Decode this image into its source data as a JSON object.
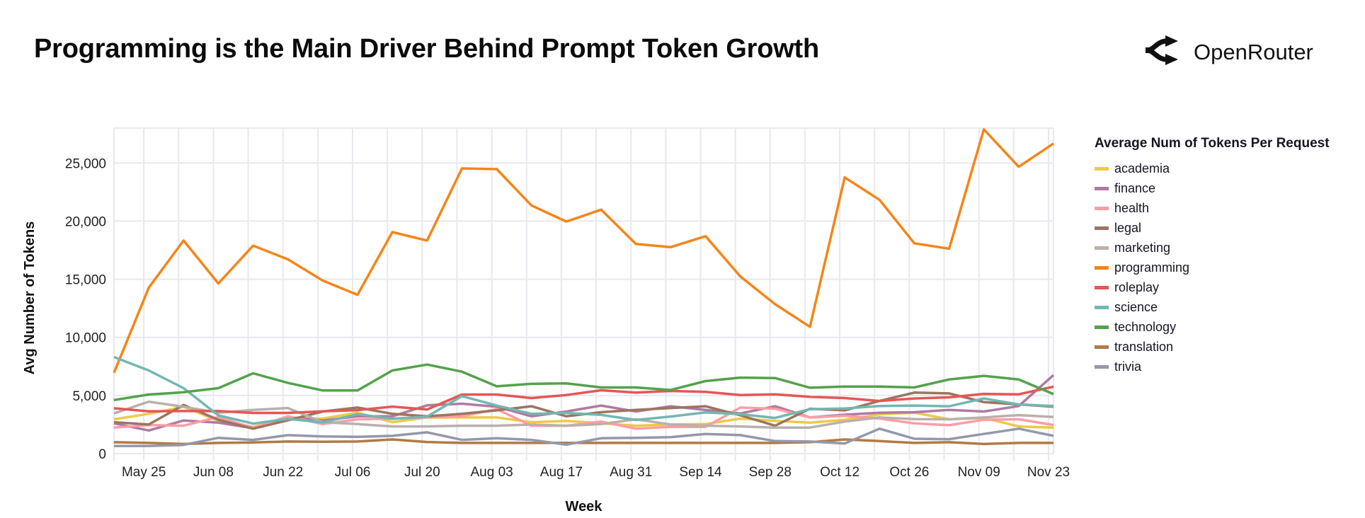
{
  "title": "Programming is the Main Driver Behind Prompt Token Growth",
  "brand": {
    "name": "OpenRouter",
    "icon": "openrouter-logo-icon"
  },
  "chart_data": {
    "type": "line",
    "xlabel": "Week",
    "ylabel": "Avg Number of Tokens",
    "legend_title": "Average Num of Tokens Per Request",
    "legend_position": "right",
    "grid": true,
    "x": [
      "2025-05-19",
      "2025-05-26",
      "2025-06-02",
      "2025-06-09",
      "2025-06-16",
      "2025-06-23",
      "2025-06-30",
      "2025-07-07",
      "2025-07-14",
      "2025-07-21",
      "2025-07-28",
      "2025-08-04",
      "2025-08-11",
      "2025-08-18",
      "2025-08-25",
      "2025-09-01",
      "2025-09-08",
      "2025-09-15",
      "2025-09-22",
      "2025-09-29",
      "2025-10-06",
      "2025-10-13",
      "2025-10-20",
      "2025-10-27",
      "2025-11-03",
      "2025-11-10",
      "2025-11-17",
      "2025-11-24"
    ],
    "xlim": [
      "2025-05-19",
      "2025-11-24"
    ],
    "x_ticks": [
      {
        "date": "2025-05-25",
        "label": "May 25"
      },
      {
        "date": "2025-06-08",
        "label": "Jun 08"
      },
      {
        "date": "2025-06-22",
        "label": "Jun 22"
      },
      {
        "date": "2025-07-06",
        "label": "Jul 06"
      },
      {
        "date": "2025-07-20",
        "label": "Jul 20"
      },
      {
        "date": "2025-08-03",
        "label": "Aug 03"
      },
      {
        "date": "2025-08-17",
        "label": "Aug 17"
      },
      {
        "date": "2025-08-31",
        "label": "Aug 31"
      },
      {
        "date": "2025-09-14",
        "label": "Sep 14"
      },
      {
        "date": "2025-09-28",
        "label": "Sep 28"
      },
      {
        "date": "2025-10-12",
        "label": "Oct 12"
      },
      {
        "date": "2025-10-26",
        "label": "Oct 26"
      },
      {
        "date": "2025-11-09",
        "label": "Nov 09"
      },
      {
        "date": "2025-11-23",
        "label": "Nov 23"
      }
    ],
    "ylim": [
      0,
      28000
    ],
    "y_ticks": [
      {
        "value": 0,
        "label": "0"
      },
      {
        "value": 5000,
        "label": "5,000"
      },
      {
        "value": 10000,
        "label": "10,000"
      },
      {
        "value": 15000,
        "label": "15,000"
      },
      {
        "value": 20000,
        "label": "20,000"
      },
      {
        "value": 25000,
        "label": "25,000"
      }
    ],
    "series": [
      {
        "name": "academia",
        "color": "#edc948",
        "values": [
          2950,
          3420,
          4030,
          2810,
          2300,
          3010,
          3010,
          3520,
          2700,
          3110,
          3110,
          3110,
          2700,
          2810,
          2600,
          2400,
          2500,
          2540,
          3010,
          2810,
          2660,
          2910,
          3380,
          3520,
          2950,
          3070,
          2340,
          2240
        ]
      },
      {
        "name": "finance",
        "color": "#b07aa1",
        "values": [
          2600,
          1990,
          2850,
          2660,
          2180,
          3150,
          2850,
          3210,
          3210,
          4150,
          4290,
          4030,
          3210,
          3620,
          4130,
          3620,
          4070,
          3760,
          3460,
          4070,
          3110,
          3350,
          3520,
          3560,
          3760,
          3620,
          4090,
          6750
        ]
      },
      {
        "name": "health",
        "color": "#ff9da7",
        "values": [
          2240,
          2460,
          2400,
          3150,
          2200,
          3210,
          2540,
          2950,
          3010,
          3110,
          3210,
          3820,
          2400,
          2400,
          2750,
          2140,
          2300,
          2300,
          3960,
          3860,
          3110,
          3250,
          3010,
          2600,
          2440,
          2910,
          2950,
          2460
        ]
      },
      {
        "name": "legal",
        "color": "#9c755f",
        "values": [
          2700,
          2500,
          4190,
          2910,
          2140,
          2870,
          3620,
          3960,
          3420,
          3210,
          3420,
          3720,
          4070,
          3210,
          3560,
          3760,
          3920,
          4070,
          3300,
          2400,
          3860,
          3720,
          4530,
          5250,
          5180,
          4430,
          4230,
          4030
        ]
      },
      {
        "name": "marketing",
        "color": "#bab0ac",
        "values": [
          3460,
          4470,
          4030,
          3520,
          3760,
          3920,
          2700,
          2540,
          2340,
          2340,
          2400,
          2400,
          2500,
          2400,
          2540,
          2950,
          2500,
          2400,
          2340,
          2240,
          2240,
          2750,
          3110,
          2970,
          2950,
          3110,
          3310,
          3150
        ]
      },
      {
        "name": "programming",
        "color": "#f58518",
        "values": [
          6950,
          14270,
          18330,
          14630,
          17890,
          16710,
          14880,
          13660,
          19050,
          18330,
          24530,
          24470,
          21340,
          19960,
          20980,
          18030,
          17760,
          18700,
          15240,
          12850,
          10910,
          23760,
          21830,
          18090,
          17620,
          27890,
          24670,
          26670
        ]
      },
      {
        "name": "roleplay",
        "color": "#e45756",
        "values": [
          3900,
          3640,
          3660,
          3660,
          3500,
          3500,
          3640,
          3740,
          4040,
          3800,
          5080,
          5080,
          4780,
          5040,
          5450,
          5250,
          5390,
          5310,
          5040,
          5100,
          4880,
          4780,
          4530,
          4740,
          4840,
          5140,
          5100,
          5750
        ]
      },
      {
        "name": "science",
        "color": "#72b7b2",
        "values": [
          8310,
          7150,
          5630,
          3290,
          2580,
          2990,
          2680,
          3390,
          2990,
          3190,
          4940,
          4130,
          3420,
          3500,
          3330,
          2890,
          3190,
          3540,
          3390,
          3070,
          3820,
          3880,
          4090,
          4130,
          4070,
          4740,
          4230,
          4090
        ]
      },
      {
        "name": "technology",
        "color": "#54a24b",
        "values": [
          4610,
          5080,
          5280,
          5630,
          6910,
          6080,
          5430,
          5430,
          7150,
          7660,
          7050,
          5790,
          6000,
          6040,
          5690,
          5690,
          5470,
          6240,
          6540,
          6500,
          5670,
          5770,
          5770,
          5690,
          6380,
          6690,
          6380,
          5120
        ]
      },
      {
        "name": "translation",
        "color": "#b07b45",
        "values": [
          980,
          920,
          830,
          920,
          960,
          1040,
          1020,
          1040,
          1220,
          1000,
          920,
          920,
          920,
          920,
          920,
          920,
          920,
          920,
          920,
          920,
          980,
          1220,
          1080,
          920,
          980,
          830,
          920,
          920
        ]
      },
      {
        "name": "trivia",
        "color": "#9498ac",
        "values": [
          650,
          650,
          750,
          1360,
          1180,
          1590,
          1480,
          1440,
          1530,
          1830,
          1180,
          1320,
          1180,
          770,
          1320,
          1360,
          1420,
          1690,
          1590,
          1080,
          1040,
          870,
          2140,
          1280,
          1240,
          1690,
          2140,
          1530
        ]
      }
    ]
  }
}
